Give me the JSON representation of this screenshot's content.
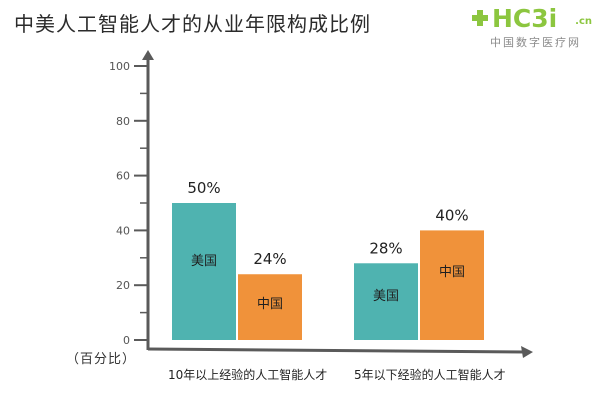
{
  "title": "中美人工智能人才的从业年限构成比例",
  "logo": {
    "brand": "HC3i",
    "brand_suffix": ".cn",
    "tagline": "中国数字医疗网"
  },
  "chart_data": {
    "type": "bar",
    "ylabel": "（百分比）",
    "ylim": [
      0,
      100
    ],
    "yticks": [
      0,
      20,
      40,
      60,
      80,
      100
    ],
    "categories": [
      "10年以上经验的人工智能人才",
      "5年以下经验的人工智能人才"
    ],
    "series": [
      {
        "name": "美国",
        "values": [
          50,
          28
        ],
        "labels": [
          "50%",
          "28%"
        ],
        "color": "#4fb3b0"
      },
      {
        "name": "中国",
        "values": [
          24,
          40
        ],
        "labels": [
          "24%",
          "40%"
        ],
        "color": "#f0923a"
      }
    ]
  },
  "colors": {
    "usa": "#4fb3b0",
    "china": "#f0923a",
    "axis": "#5a5a5a",
    "logo": "#8cc63f"
  }
}
